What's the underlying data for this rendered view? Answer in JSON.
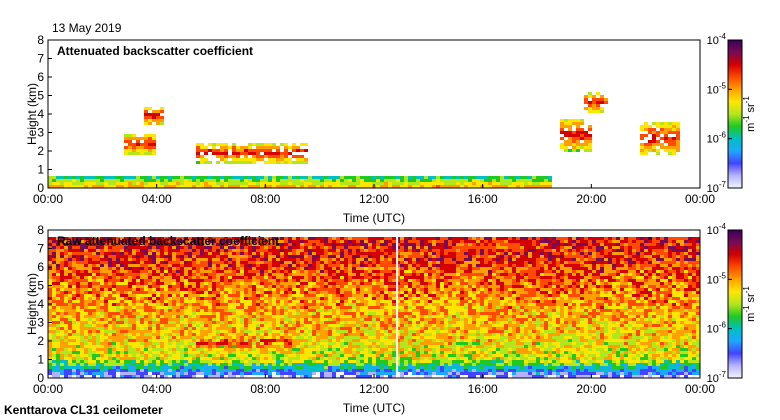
{
  "header": {
    "date": "13 May 2019"
  },
  "footer": {
    "instrument": "Kenttarova CL31 ceilometer"
  },
  "colors": {
    "colormap": [
      "#f4f4ff",
      "#b3b3ff",
      "#4444ff",
      "#1ea7ff",
      "#00c0c0",
      "#22c822",
      "#b4e61e",
      "#ffe600",
      "#ffa000",
      "#ff4a00",
      "#d20000",
      "#7a0a55",
      "#3a005a"
    ],
    "frame": "#000000"
  },
  "chart_data": [
    {
      "type": "heatmap",
      "title": "Attenuated backscatter coefficient",
      "xlabel": "Time (UTC)",
      "ylabel": "Height (km)",
      "xlim": [
        0,
        24
      ],
      "ylim": [
        0,
        8
      ],
      "xticks": [
        "00:00",
        "04:00",
        "08:00",
        "12:00",
        "16:00",
        "20:00",
        "00:00"
      ],
      "yticks": [
        "0",
        "1",
        "2",
        "3",
        "4",
        "5",
        "6",
        "7",
        "8"
      ],
      "colorbar": {
        "labels": [
          "10-7",
          "10-6",
          "10-5",
          "10-4"
        ],
        "label_base": [
          "10",
          "10",
          "10",
          "10"
        ],
        "label_exp": [
          "-7",
          "-6",
          "-5",
          "-4"
        ],
        "unit": "m-1 sr-1",
        "unit_parts": [
          "m",
          "-1",
          " sr",
          "-1"
        ],
        "scale": "log",
        "range": [
          1e-07,
          0.0001
        ]
      },
      "features": [
        {
          "kind": "boundary_layer",
          "t_start": 0,
          "t_end": 18.5,
          "h_top": 0.7
        },
        {
          "kind": "cloud_layer",
          "t_start": 5.5,
          "t_end": 9.5,
          "h": 1.9
        },
        {
          "kind": "cloud_layer",
          "t_start": 2.8,
          "t_end": 4.0,
          "h": 2.4
        },
        {
          "kind": "cloud_layer",
          "t_start": 3.5,
          "t_end": 4.2,
          "h": 3.9
        },
        {
          "kind": "cloud_layer",
          "t_start": 19.8,
          "t_end": 20.6,
          "h": 4.6
        },
        {
          "kind": "cloud_streak",
          "t_start": 21.8,
          "t_end": 23.3,
          "h": 2.7
        },
        {
          "kind": "cloud_streak",
          "t_start": 18.8,
          "t_end": 20.0,
          "h": 2.9
        }
      ]
    },
    {
      "type": "heatmap",
      "title": "Raw attenuated backscatter coefficient",
      "xlabel": "Time (UTC)",
      "ylabel": "Height (km)",
      "xlim": [
        0,
        24
      ],
      "ylim": [
        0,
        8
      ],
      "xticks": [
        "00:00",
        "04:00",
        "08:00",
        "12:00",
        "16:00",
        "20:00",
        "00:00"
      ],
      "yticks": [
        "0",
        "1",
        "2",
        "3",
        "4",
        "5",
        "6",
        "7",
        "8"
      ],
      "colorbar": {
        "labels": [
          "10-7",
          "10-6",
          "10-5",
          "10-4"
        ],
        "label_base": [
          "10",
          "10",
          "10",
          "10"
        ],
        "label_exp": [
          "-7",
          "-6",
          "-5",
          "-4"
        ],
        "unit": "m-1 sr-1",
        "unit_parts": [
          "m",
          "-1",
          " sr",
          "-1"
        ],
        "scale": "log",
        "range": [
          1e-07,
          0.0001
        ]
      },
      "features": [
        {
          "kind": "noise_gradient",
          "t_start": 0,
          "t_end": 24,
          "h_top": 7.7
        },
        {
          "kind": "cloud_layer",
          "t_start": 5.5,
          "t_end": 9.0,
          "h": 1.9
        },
        {
          "kind": "data_gap",
          "t": 12.85
        }
      ]
    }
  ]
}
